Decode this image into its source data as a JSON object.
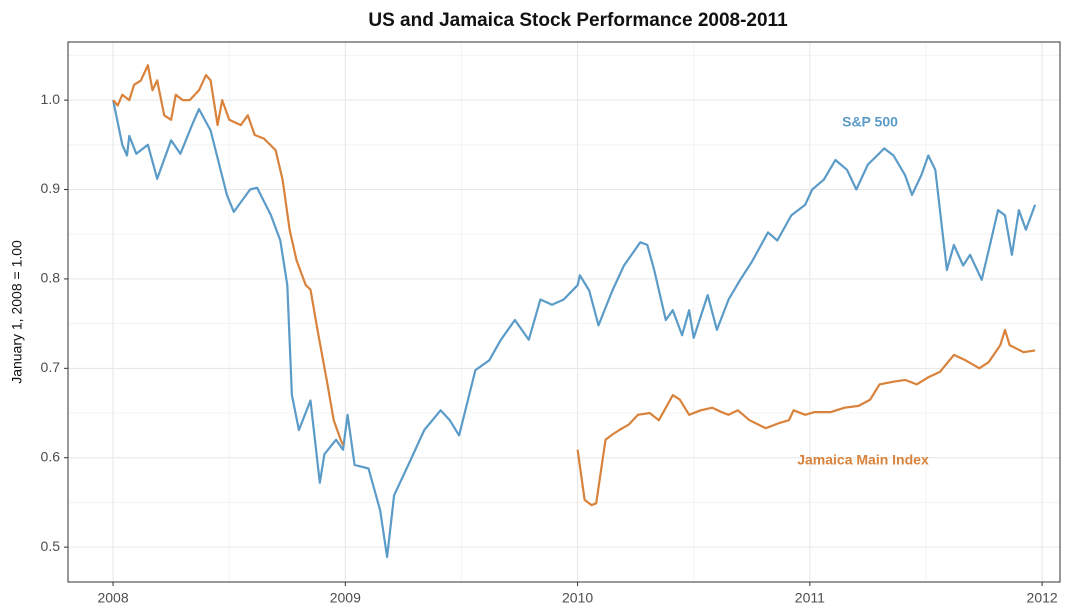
{
  "chart_data": {
    "type": "line",
    "title": "US and Jamaica Stock Performance 2008-2011",
    "y_label": "January 1, 2008 = 1.00",
    "xlim": [
      2007.806,
      2012.077
    ],
    "xticks": [
      2008,
      2009,
      2010,
      2011,
      2012
    ],
    "minor_xticks": [
      2008.5,
      2009.5,
      2010.5,
      2011.5
    ],
    "ylim": [
      0.461,
      1.065
    ],
    "yticks": [
      0.5,
      0.6,
      0.7,
      0.8,
      0.9,
      {
        "value": 1,
        "label": "1.0"
      }
    ],
    "minor_yticks": [
      0.55,
      0.65,
      0.75,
      0.85,
      0.95,
      1.05
    ],
    "grid": true,
    "series": [
      {
        "name": "S&P 500",
        "color": "#5b9bc8",
        "x": [
          2008.0,
          2008.04,
          2008.06,
          2008.07,
          2008.1,
          2008.15,
          2008.19,
          2008.25,
          2008.29,
          2008.34,
          2008.37,
          2008.42,
          2008.49,
          2008.52,
          2008.59,
          2008.62,
          2008.68,
          2008.72,
          2008.75,
          2008.77,
          2008.8,
          2008.85,
          2008.89,
          2008.91,
          2008.96,
          2008.99,
          2009.01,
          2009.04,
          2009.1,
          2009.15,
          2009.18,
          2009.21,
          2009.28,
          2009.34,
          2009.41,
          2009.45,
          2009.49,
          2009.56,
          2009.62,
          2009.67,
          2009.73,
          2009.79,
          2009.84,
          2009.89,
          2009.94,
          2010.0,
          2010.01,
          2010.05,
          2010.09,
          2010.15,
          2010.2,
          2010.27,
          2010.3,
          2010.33,
          2010.38,
          2010.41,
          2010.45,
          2010.48,
          2010.5,
          2010.56,
          2010.6,
          2010.65,
          2010.7,
          2010.75,
          2010.82,
          2010.86,
          2010.92,
          2010.98,
          2011.01,
          2011.06,
          2011.11,
          2011.16,
          2011.2,
          2011.25,
          2011.29,
          2011.32,
          2011.36,
          2011.41,
          2011.44,
          2011.48,
          2011.51,
          2011.54,
          2011.57,
          2011.59,
          2011.62,
          2011.66,
          2011.69,
          2011.74,
          2011.78,
          2011.81,
          2011.84,
          2011.87,
          2011.9,
          2011.93,
          2011.97
        ],
        "values": [
          1.0,
          0.95,
          0.938,
          0.96,
          0.94,
          0.95,
          0.912,
          0.955,
          0.94,
          0.972,
          0.99,
          0.966,
          0.894,
          0.875,
          0.9,
          0.902,
          0.871,
          0.843,
          0.793,
          0.67,
          0.631,
          0.664,
          0.572,
          0.604,
          0.62,
          0.609,
          0.648,
          0.592,
          0.588,
          0.541,
          0.489,
          0.558,
          0.597,
          0.631,
          0.653,
          0.642,
          0.625,
          0.698,
          0.709,
          0.732,
          0.754,
          0.732,
          0.777,
          0.771,
          0.777,
          0.793,
          0.804,
          0.787,
          0.748,
          0.787,
          0.815,
          0.841,
          0.838,
          0.81,
          0.754,
          0.765,
          0.737,
          0.765,
          0.734,
          0.782,
          0.743,
          0.777,
          0.799,
          0.819,
          0.852,
          0.843,
          0.871,
          0.883,
          0.9,
          0.911,
          0.933,
          0.922,
          0.9,
          0.928,
          0.938,
          0.946,
          0.938,
          0.916,
          0.894,
          0.916,
          0.938,
          0.922,
          0.855,
          0.81,
          0.838,
          0.815,
          0.827,
          0.799,
          0.843,
          0.877,
          0.871,
          0.827,
          0.877,
          0.855,
          0.883
        ]
      },
      {
        "name": "Jamaica Main Index",
        "color": "#d9823b",
        "x": [
          2008.0,
          2008.02,
          2008.04,
          2008.07,
          2008.09,
          2008.12,
          2008.15,
          2008.17,
          2008.19,
          2008.22,
          2008.25,
          2008.27,
          2008.3,
          2008.33,
          2008.37,
          2008.4,
          2008.42,
          2008.45,
          2008.47,
          2008.5,
          2008.55,
          2008.58,
          2008.61,
          2008.65,
          2008.7,
          2008.73,
          2008.76,
          2008.79,
          2008.83,
          2008.85,
          2008.88,
          2008.92,
          2008.95,
          2008.98,
          2008.99,
          2009.5,
          2010.0,
          2010.03,
          2010.06,
          2010.08,
          2010.12,
          2010.15,
          2010.18,
          2010.22,
          2010.26,
          2010.31,
          2010.35,
          2010.41,
          2010.44,
          2010.48,
          2010.53,
          2010.58,
          2010.62,
          2010.65,
          2010.69,
          2010.74,
          2010.81,
          2010.87,
          2010.91,
          2010.93,
          2010.98,
          2011.02,
          2011.09,
          2011.15,
          2011.21,
          2011.26,
          2011.3,
          2011.36,
          2011.41,
          2011.46,
          2011.51,
          2011.56,
          2011.62,
          2011.67,
          2011.73,
          2011.77,
          2011.82,
          2011.84,
          2011.86,
          2011.89,
          2011.92,
          2011.97
        ],
        "values": [
          1.0,
          0.994,
          1.006,
          1.0,
          1.017,
          1.022,
          1.039,
          1.011,
          1.022,
          0.983,
          0.978,
          1.006,
          1.0,
          1.0,
          1.011,
          1.028,
          1.022,
          0.972,
          1.0,
          0.978,
          0.972,
          0.983,
          0.961,
          0.957,
          0.944,
          0.911,
          0.855,
          0.821,
          0.793,
          0.788,
          0.743,
          0.687,
          0.642,
          0.62,
          0.614,
          null,
          0.609,
          0.553,
          0.547,
          0.549,
          0.62,
          0.626,
          0.631,
          0.637,
          0.648,
          0.65,
          0.642,
          0.67,
          0.665,
          0.648,
          0.653,
          0.656,
          0.651,
          0.648,
          0.653,
          0.642,
          0.633,
          0.639,
          0.642,
          0.653,
          0.648,
          0.651,
          0.651,
          0.656,
          0.658,
          0.665,
          0.682,
          0.685,
          0.687,
          0.682,
          0.69,
          0.696,
          0.715,
          0.709,
          0.7,
          0.707,
          0.726,
          0.743,
          0.726,
          0.722,
          0.718,
          0.72
        ]
      }
    ]
  }
}
